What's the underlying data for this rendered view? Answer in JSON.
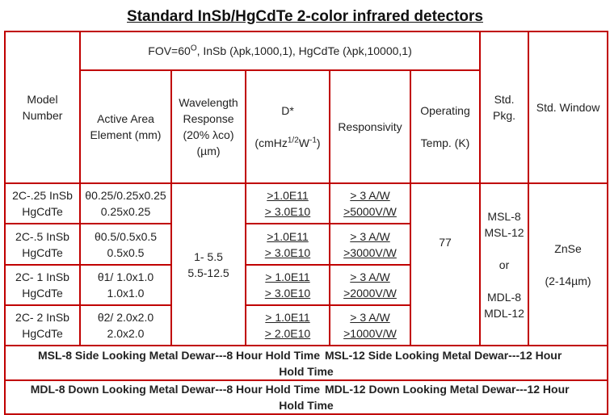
{
  "title": "Standard InSb/HgCdTe 2-color infrared detectors",
  "header": {
    "fov_prefix": "FOV=60",
    "fov_sup": "O",
    "fov_suffix": ", InSb (λpk,1000,1), HgCdTe (λpk,10000,1)",
    "model": [
      "Model",
      "Number"
    ],
    "active_area": [
      "Active Area",
      "Element (mm)"
    ],
    "wavelength": [
      "Wavelength",
      "Response",
      "(20% λco)",
      "(µm)"
    ],
    "dstar_title": "D*",
    "dstar_units_a": "(cmHz",
    "dstar_units_sup1": "1/2",
    "dstar_units_b": "W",
    "dstar_units_sup2": "-1",
    "dstar_units_c": ")",
    "responsivity": "Responsivity",
    "operating": [
      "Operating",
      "Temp. (K)"
    ],
    "std_pkg": [
      "Std.",
      "Pkg."
    ],
    "std_window": "Std. Window"
  },
  "rows": [
    {
      "model": [
        "2C-.25 InSb",
        "HgCdTe"
      ],
      "area": [
        "θ0.25/0.25x0.25",
        "0.25x0.25"
      ],
      "dstar": [
        ">1.0E11",
        "> 3.0E10"
      ],
      "resp": [
        "> 3 A/W",
        ">5000V/W"
      ]
    },
    {
      "model": [
        "2C-.5 InSb",
        "HgCdTe"
      ],
      "area": [
        "θ0.5/0.5x0.5",
        "0.5x0.5"
      ],
      "dstar": [
        ">1.0E11",
        "> 3.0E10"
      ],
      "resp": [
        "> 3 A/W",
        ">3000V/W"
      ]
    },
    {
      "model": [
        "2C- 1 InSb",
        "HgCdTe"
      ],
      "area": [
        "θ1/ 1.0x1.0",
        "1.0x1.0"
      ],
      "dstar": [
        "> 1.0E11",
        "> 3.0E10"
      ],
      "resp": [
        "> 3 A/W",
        ">2000V/W"
      ]
    },
    {
      "model": [
        "2C- 2 InSb",
        "HgCdTe"
      ],
      "area": [
        "θ2/ 2.0x2.0",
        "2.0x2.0"
      ],
      "dstar": [
        "> 1.0E11",
        "> 2.0E10"
      ],
      "resp": [
        "> 3 A/W",
        ">1000V/W"
      ]
    }
  ],
  "shared": {
    "wavelength": [
      "1- 5.5",
      "5.5-12.5"
    ],
    "temp": "77",
    "pkg": [
      "MSL-8",
      "MSL-12",
      "or",
      "MDL-8",
      "MDL-12"
    ],
    "window": [
      "ZnSe",
      "(2-14µm)"
    ]
  },
  "notes": {
    "msl8": "MSL-8 Side Looking Metal Dewar---8 Hour Hold Time",
    "msl12": "MSL-12 Side Looking Metal Dewar---12 Hour",
    "msl12_cont": "Hold Time",
    "mdl8": "MDL-8 Down Looking Metal Dewar---8 Hour Hold Time",
    "mdl12": "MDL-12 Down Looking Metal Dewar---12 Hour",
    "mdl12_cont": "Hold Time"
  },
  "colors": {
    "border": "#c00000",
    "text": "#222222"
  }
}
